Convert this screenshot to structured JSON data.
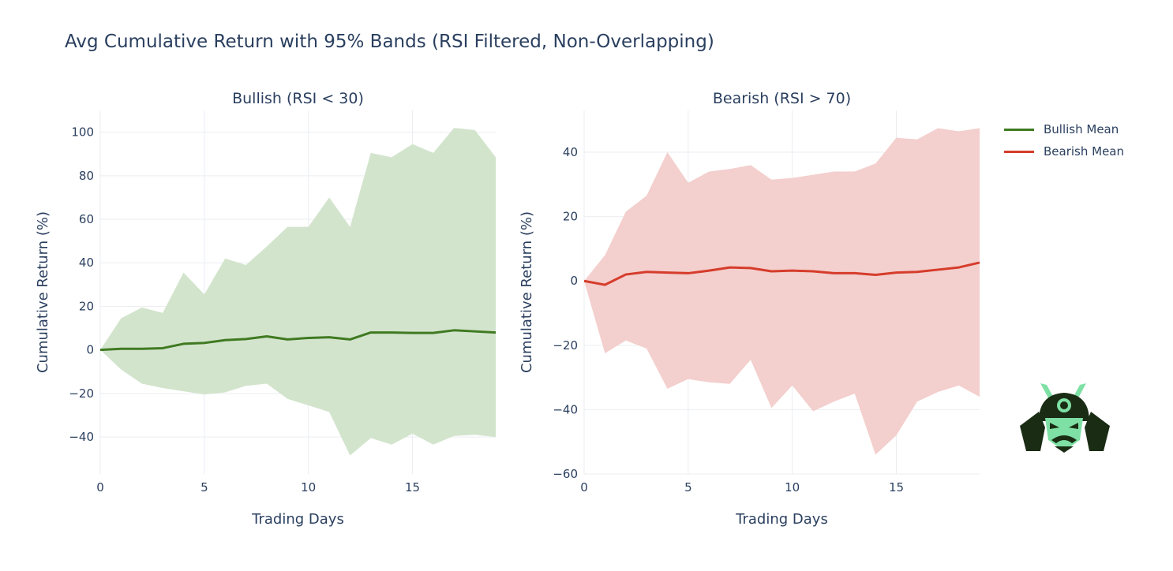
{
  "title": "Avg Cumulative Return with 95% Bands (RSI Filtered, Non-Overlapping)",
  "colors": {
    "bullish_line": "#3f7a21",
    "bullish_band": "#d3e4cd",
    "bearish_line": "#d63c2b",
    "bearish_band": "#f3cfcd",
    "grid": "#ebedf1",
    "zero_line": "#dfe2e7",
    "text": "#2a3f5f"
  },
  "legend": [
    {
      "label": "Bullish Mean",
      "color": "#3f7a21"
    },
    {
      "label": "Bearish Mean",
      "color": "#d63c2b"
    }
  ],
  "chart_data": [
    {
      "type": "line",
      "title": "Bullish (RSI < 30)",
      "xlabel": "Trading Days",
      "ylabel": "Cumulative Return (%)",
      "xlim": [
        0,
        19
      ],
      "ylim": [
        -57,
        110
      ],
      "xticks": [
        0,
        5,
        10,
        15
      ],
      "yticks": [
        -40,
        -20,
        0,
        20,
        40,
        60,
        80,
        100
      ],
      "grid": true,
      "x": [
        0,
        1,
        2,
        3,
        4,
        5,
        6,
        7,
        8,
        9,
        10,
        11,
        12,
        13,
        14,
        15,
        16,
        17,
        18,
        19
      ],
      "series": [
        {
          "name": "Bullish Mean",
          "values": [
            0,
            0.5,
            0.5,
            0.8,
            2.8,
            3.2,
            4.5,
            5.0,
            6.2,
            4.8,
            5.5,
            5.8,
            4.8,
            8.0,
            8.0,
            7.8,
            7.8,
            9.0,
            8.5,
            8.0
          ]
        },
        {
          "values": [
            0,
            14.5,
            19.5,
            17,
            35.5,
            25.5,
            42,
            39,
            47.5,
            56.5,
            56.5,
            70,
            56.5,
            90.5,
            88.5,
            94.5,
            90.5,
            102,
            101,
            88.5
          ]
        },
        {
          "values": [
            0,
            -9,
            -15.5,
            -17.5,
            -19,
            -20.5,
            -19.5,
            -16.5,
            -15.5,
            -22.5,
            -25.5,
            -28.5,
            -48.5,
            -40.5,
            -43.5,
            -38.5,
            -43.5,
            -39.5,
            -39,
            -40
          ]
        }
      ]
    },
    {
      "type": "line",
      "title": "Bearish (RSI > 70)",
      "xlabel": "Trading Days",
      "ylabel": "Cumulative Return (%)",
      "xlim": [
        0,
        19
      ],
      "ylim": [
        -60,
        53
      ],
      "xticks": [
        0,
        5,
        10,
        15
      ],
      "yticks": [
        -60,
        -40,
        -20,
        0,
        20,
        40
      ],
      "grid": true,
      "x": [
        0,
        1,
        2,
        3,
        4,
        5,
        6,
        7,
        8,
        9,
        10,
        11,
        12,
        13,
        14,
        15,
        16,
        17,
        18,
        19
      ],
      "series": [
        {
          "name": "Bearish Mean",
          "values": [
            0,
            -1.2,
            2,
            2.8,
            2.6,
            2.4,
            3.2,
            4.2,
            4.0,
            3.0,
            3.2,
            3.0,
            2.4,
            2.4,
            1.9,
            2.6,
            2.8,
            3.5,
            4.2,
            5.7
          ]
        },
        {
          "values": [
            0,
            8,
            21.5,
            26.5,
            40,
            30.5,
            34,
            34.8,
            36,
            31.5,
            32,
            33,
            34,
            34,
            36.5,
            44.5,
            44,
            47.5,
            46.5,
            47.5
          ]
        },
        {
          "values": [
            0,
            -22.5,
            -18.5,
            -21,
            -33.5,
            -30.5,
            -31.5,
            -32,
            -24.5,
            -39.5,
            -32.5,
            -40.5,
            -37.5,
            -35,
            -54,
            -48,
            -37.5,
            -34.5,
            -32.5,
            -36
          ]
        }
      ]
    }
  ]
}
